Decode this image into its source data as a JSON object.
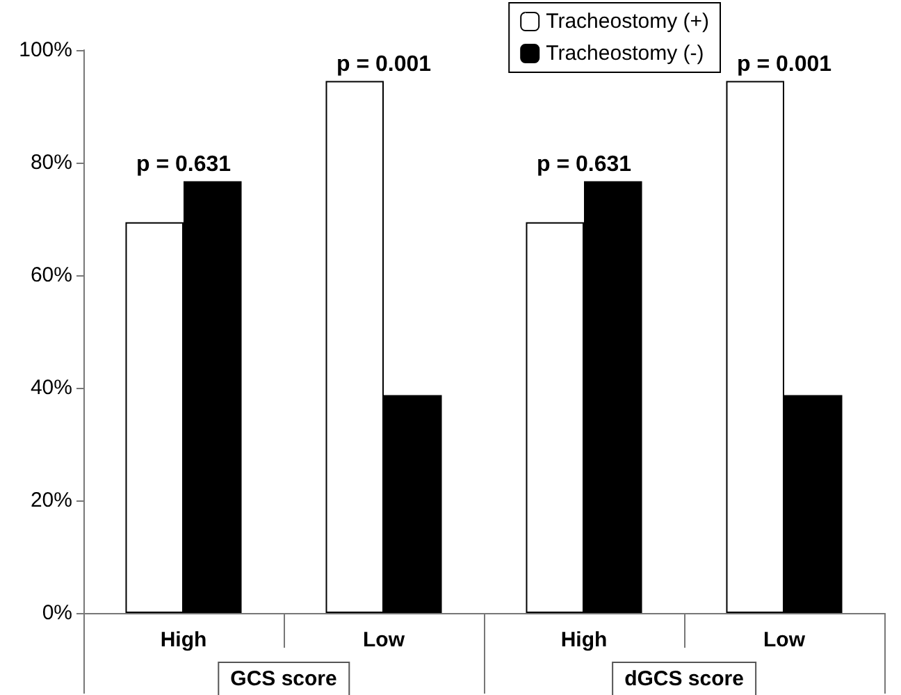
{
  "chart_data": {
    "type": "bar",
    "categories": [
      "High",
      "Low",
      "High",
      "Low"
    ],
    "series": [
      {
        "name": "Tracheostomy (+)",
        "color": "#ffffff",
        "values": [
          69.4,
          94.5,
          69.4,
          94.5
        ]
      },
      {
        "name": "Tracheostomy (-)",
        "color": "#000000",
        "values": [
          76.7,
          38.7,
          76.7,
          38.7
        ]
      }
    ],
    "ylim": [
      0,
      100
    ],
    "yticks": [
      {
        "value": 0,
        "label": "0%"
      },
      {
        "value": 20,
        "label": "20%"
      },
      {
        "value": 40,
        "label": "40%"
      },
      {
        "value": 60,
        "label": "60%"
      },
      {
        "value": 80,
        "label": "80%"
      },
      {
        "value": 100,
        "label": "100%"
      }
    ],
    "annotations": [
      "p = 0.631",
      "p = 0.001",
      "p = 0.631",
      "p = 0.001",
      "GCS score",
      "dGCS score"
    ],
    "grid": false,
    "legend": "top right"
  }
}
